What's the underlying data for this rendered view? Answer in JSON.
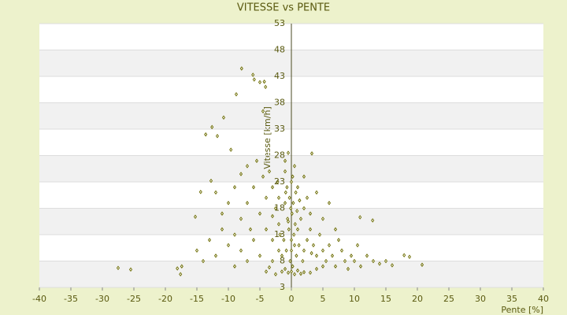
{
  "chart_data": {
    "type": "scatter",
    "title": "VITESSE vs PENTE",
    "x_label": "Pente [%]",
    "y_label": "Vitesse [km/h]",
    "color": "#6b6b00",
    "grid": true,
    "xlim": [
      -40,
      40
    ],
    "xticks": [
      -40,
      -35,
      -30,
      -25,
      -20,
      -15,
      -10,
      -5,
      0,
      5,
      10,
      15,
      20,
      25,
      30,
      35,
      40
    ],
    "ylim": [
      3,
      53
    ],
    "yticks": [
      3,
      8,
      13,
      18,
      23,
      28,
      33,
      38,
      43,
      48,
      53
    ],
    "x": [
      -7.9,
      -6.1,
      -5.9,
      -5,
      -4.3,
      -4.1,
      -8.75,
      -4.5,
      -10.75,
      -12.6,
      -13.6,
      -11.75,
      -27.5,
      -25.5,
      -18.1,
      -17.4,
      -17.6,
      20.75,
      18.75,
      17.9,
      12.9,
      10.9,
      3.25,
      -9.6,
      -15.25,
      -14.4,
      -12.75,
      0,
      0.5,
      -0.5,
      1,
      2,
      -1,
      1.5,
      -1.5,
      0.2,
      -0.2,
      0.8,
      -0.8,
      1.2,
      -1.2,
      0.4,
      -0.4,
      0.6,
      -0.6,
      0.1,
      -0.1,
      0.3,
      -0.3,
      0.7,
      -0.7,
      0,
      0.2,
      -1,
      0.5,
      -2,
      -2.5,
      -3,
      -3.5,
      -4,
      -2,
      -1.8,
      -3,
      -4,
      -5,
      -6,
      -7,
      -8,
      -9,
      -10,
      -11,
      -12,
      -13,
      -14,
      -15,
      -8,
      -6,
      -5,
      -7,
      -9,
      -4,
      -3,
      -2,
      2,
      2.5,
      3,
      3.5,
      4,
      4.5,
      5,
      5.5,
      6,
      6.5,
      7,
      7.5,
      8,
      8.5,
      9,
      9.5,
      10,
      10.5,
      11,
      12,
      13,
      14,
      15,
      16,
      1.5,
      2,
      2.5,
      3,
      1,
      2,
      4,
      5,
      6,
      7,
      3,
      4,
      5,
      -2.5,
      -3.5,
      -1,
      -0.5,
      -4.5,
      -5.5,
      -7,
      -8,
      -9,
      -10,
      -11,
      -12,
      -6.5,
      -3,
      -1,
      1,
      0.5,
      -1.5,
      1.8,
      0,
      0,
      -0.5,
      0.9,
      -0.9,
      1.3,
      -2.2,
      3.2
    ],
    "values": [
      44.5,
      43.3,
      42.4,
      41.9,
      42,
      41,
      39.6,
      36.4,
      35.2,
      33.4,
      32,
      31.7,
      6.7,
      6.4,
      6.6,
      7,
      5.5,
      7.3,
      8.8,
      9.1,
      15.7,
      16.3,
      28.4,
      29.1,
      16.4,
      21.1,
      23.2,
      6,
      5.5,
      5.8,
      6.2,
      5.9,
      6.5,
      5.6,
      6,
      7,
      8,
      9,
      10,
      11,
      12,
      13,
      14,
      15,
      16,
      17,
      18,
      19,
      20,
      21,
      22,
      23,
      24,
      25,
      26,
      20,
      18,
      22,
      25,
      20,
      15,
      13,
      12,
      14,
      17,
      22,
      19,
      16,
      13,
      11,
      14,
      9,
      12,
      8,
      10,
      10,
      12,
      9,
      8,
      7,
      6,
      8,
      10,
      10,
      12,
      14,
      11,
      9,
      13,
      10,
      8,
      11,
      9,
      7,
      12,
      10,
      8,
      6.5,
      9,
      8,
      11,
      7,
      9,
      8,
      7.5,
      8,
      7.2,
      16,
      18,
      20,
      17,
      22,
      24,
      21,
      16,
      19,
      14,
      5.8,
      6.5,
      7,
      5.5,
      6.8,
      27,
      28.5,
      24,
      27,
      26,
      24.5,
      22,
      19,
      17,
      21,
      14,
      16.5,
      19,
      14,
      11,
      9,
      8,
      10,
      12,
      15.5,
      17.5,
      21,
      19.5,
      23,
      9.5
    ]
  }
}
